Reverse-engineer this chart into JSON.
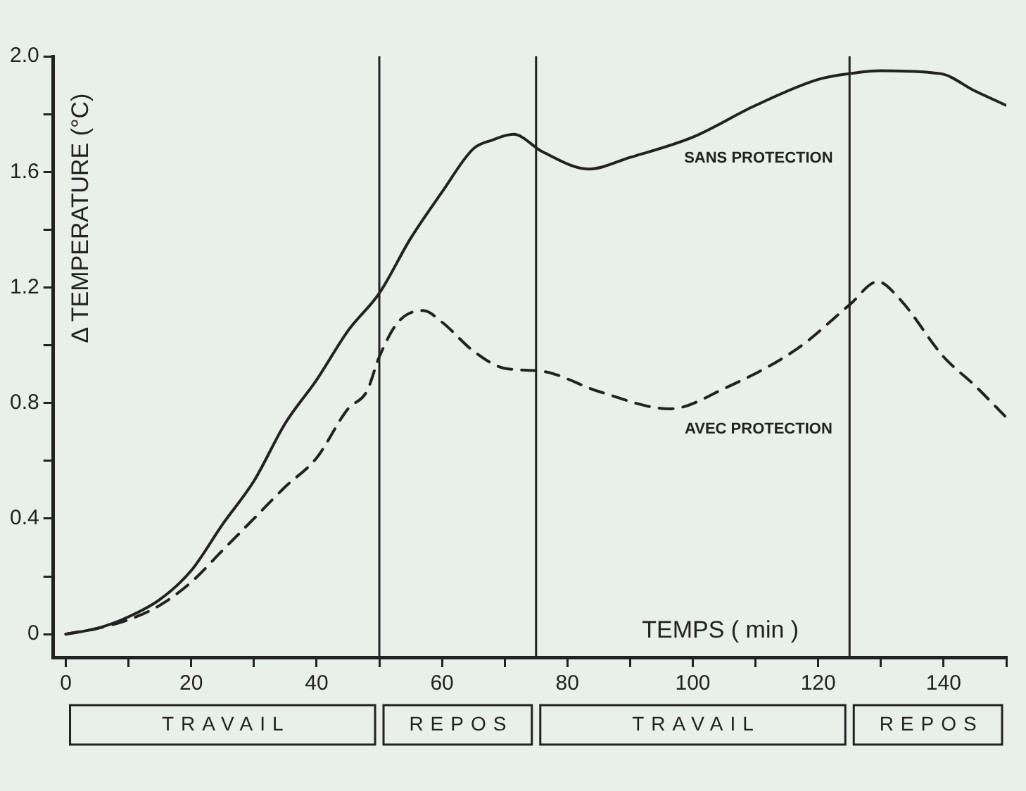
{
  "chart_data": {
    "type": "line",
    "xlabel": "TEMPS ( min )",
    "ylabel": "Δ TEMPERATURE (°C)",
    "xlim": [
      -2,
      150
    ],
    "ylim": [
      -0.08,
      2.0
    ],
    "xticks": [
      0,
      {
        "value": 10,
        "label": null
      },
      20,
      {
        "value": 30,
        "label": null
      },
      40,
      {
        "value": 50,
        "label": null
      },
      60,
      {
        "value": 70,
        "label": null
      },
      80,
      {
        "value": 90,
        "label": null
      },
      100,
      {
        "value": 110,
        "label": null
      },
      120,
      {
        "value": 130,
        "label": null
      },
      140,
      {
        "value": 150,
        "label": null
      }
    ],
    "yticks": [
      0,
      {
        "value": 0.2,
        "label": null
      },
      0.4,
      {
        "value": 0.6,
        "label": null
      },
      0.8,
      {
        "value": 1.0,
        "label": null
      },
      1.2,
      {
        "value": 1.4,
        "label": null
      },
      1.6,
      {
        "value": 1.8,
        "label": null
      },
      {
        "value": 2.0,
        "label": "2.0"
      }
    ],
    "grid": false,
    "legend": false,
    "marker": "none",
    "series": [
      {
        "name": "SANS PROTECTION",
        "color": "#222222",
        "line_style": "solid",
        "x": [
          0,
          5,
          10,
          15,
          20,
          25,
          30,
          35,
          40,
          45,
          50,
          55,
          60,
          65,
          68,
          71.4,
          76,
          83.4,
          90,
          100,
          110,
          120,
          125,
          130,
          139.5,
          145,
          150
        ],
        "values": [
          0,
          0.02,
          0.06,
          0.12,
          0.22,
          0.38,
          0.53,
          0.73,
          0.88,
          1.05,
          1.18,
          1.37,
          1.53,
          1.68,
          1.71,
          1.73,
          1.67,
          1.61,
          1.65,
          1.72,
          1.83,
          1.92,
          1.94,
          1.95,
          1.94,
          1.88,
          1.83
        ]
      },
      {
        "name": "AVEC PROTECTION",
        "color": "#222222",
        "line_style": "dashed",
        "x": [
          0,
          5,
          10,
          15,
          20,
          25,
          30,
          35,
          40,
          45,
          48,
          50,
          53,
          57,
          60,
          65,
          70,
          76,
          85,
          96.4,
          105,
          116.8,
          125,
          129.5,
          133,
          140,
          145,
          150
        ],
        "values": [
          0,
          0.02,
          0.05,
          0.1,
          0.18,
          0.29,
          0.4,
          0.51,
          0.61,
          0.78,
          0.84,
          0.96,
          1.08,
          1.12,
          1.08,
          0.98,
          0.92,
          0.91,
          0.84,
          0.78,
          0.85,
          0.99,
          1.14,
          1.22,
          1.16,
          0.96,
          0.86,
          0.75
        ]
      }
    ],
    "ref_lines": [
      {
        "axis": "x",
        "value": 50
      },
      {
        "axis": "x",
        "value": 75
      },
      {
        "axis": "x",
        "value": 125
      }
    ],
    "annotations": [
      "TRAVAIL",
      "REPOS",
      "TRAVAIL",
      "REPOS"
    ]
  }
}
